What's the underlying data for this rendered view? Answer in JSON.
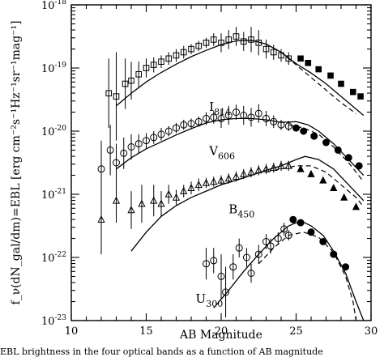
{
  "caption": "EBL brightness in the four optical bands as a function of AB magnitude",
  "chart_data": {
    "type": "scatter",
    "xlabel": "AB Magnitude",
    "ylabel": "f_ν(dN_gal/dm)=EBL [erg cm⁻²s⁻¹Hz⁻¹sr⁻¹mag⁻¹]",
    "xlim": [
      10,
      30
    ],
    "ylim_log10": [
      -23,
      -18
    ],
    "y_scale": "log",
    "x_ticks": [
      "10",
      "15",
      "20",
      "25",
      "30"
    ],
    "y_ticks": [
      {
        "base": "10",
        "exp": "-18"
      },
      {
        "base": "10",
        "exp": "-19"
      },
      {
        "base": "10",
        "exp": "-20"
      },
      {
        "base": "10",
        "exp": "-21"
      },
      {
        "base": "10",
        "exp": "-22"
      },
      {
        "base": "10",
        "exp": "-23"
      }
    ],
    "series": [
      {
        "name": "I",
        "sub": "814",
        "marker": "square",
        "label_at": [
          19.2,
          -19.68
        ],
        "open_points": [
          [
            12.5,
            -19.4,
            0.55
          ],
          [
            13.0,
            -19.45,
            0.7
          ],
          [
            13.6,
            -19.25,
            0.4
          ],
          [
            14.0,
            -19.2,
            0.3
          ],
          [
            14.5,
            -19.1,
            0.2
          ],
          [
            15.0,
            -19.0,
            0.15
          ],
          [
            15.5,
            -18.95,
            0.12
          ],
          [
            16.0,
            -18.9,
            0.1
          ],
          [
            16.5,
            -18.85,
            0.1
          ],
          [
            17.0,
            -18.8,
            0.1
          ],
          [
            17.5,
            -18.75,
            0.1
          ],
          [
            18.0,
            -18.7,
            0.08
          ],
          [
            18.5,
            -18.65,
            0.08
          ],
          [
            19.0,
            -18.6,
            0.08
          ],
          [
            19.5,
            -18.55,
            0.1
          ],
          [
            20.0,
            -18.6,
            0.15
          ],
          [
            20.5,
            -18.55,
            0.15
          ],
          [
            21.0,
            -18.5,
            0.15
          ],
          [
            21.5,
            -18.58,
            0.15
          ],
          [
            22.0,
            -18.55,
            0.2
          ],
          [
            22.5,
            -18.6,
            0.2
          ],
          [
            23.0,
            -18.7,
            0.15
          ],
          [
            23.5,
            -18.75,
            0.12
          ],
          [
            24.0,
            -18.8,
            0.1
          ],
          [
            24.5,
            -18.85,
            0.1
          ]
        ],
        "filled_points": [
          [
            25.3,
            -18.85
          ],
          [
            25.8,
            -18.92
          ],
          [
            26.5,
            -19.02
          ],
          [
            27.3,
            -19.12
          ],
          [
            28.0,
            -19.25
          ],
          [
            28.8,
            -19.38
          ],
          [
            29.3,
            -19.45
          ]
        ],
        "model_solid": [
          [
            13,
            -19.6
          ],
          [
            14,
            -19.4
          ],
          [
            15,
            -19.22
          ],
          [
            16,
            -19.07
          ],
          [
            17,
            -18.94
          ],
          [
            18,
            -18.82
          ],
          [
            19,
            -18.72
          ],
          [
            20,
            -18.63
          ],
          [
            21,
            -18.57
          ],
          [
            22,
            -18.56
          ],
          [
            23,
            -18.62
          ],
          [
            24,
            -18.75
          ],
          [
            25,
            -18.93
          ],
          [
            26,
            -19.08
          ],
          [
            27,
            -19.25
          ],
          [
            28,
            -19.45
          ],
          [
            29,
            -19.65
          ],
          [
            29.5,
            -19.75
          ]
        ],
        "model_dash": [
          [
            23,
            -18.62
          ],
          [
            24,
            -18.75
          ],
          [
            25,
            -18.95
          ],
          [
            26,
            -19.15
          ],
          [
            27,
            -19.35
          ],
          [
            28,
            -19.55
          ],
          [
            29,
            -19.72
          ]
        ]
      },
      {
        "name": "V",
        "sub": "606",
        "marker": "circle",
        "label_at": [
          19.2,
          -20.38
        ],
        "open_points": [
          [
            12.0,
            -20.6,
            0.45
          ],
          [
            12.6,
            -20.3,
            0.4
          ],
          [
            13.0,
            -20.5,
            0.3
          ],
          [
            13.5,
            -20.35,
            0.25
          ],
          [
            14.0,
            -20.25,
            0.2
          ],
          [
            14.5,
            -20.2,
            0.15
          ],
          [
            15.0,
            -20.15,
            0.12
          ],
          [
            15.5,
            -20.1,
            0.1
          ],
          [
            16.0,
            -20.05,
            0.1
          ],
          [
            16.5,
            -20.0,
            0.08
          ],
          [
            17.0,
            -19.95,
            0.08
          ],
          [
            17.5,
            -19.9,
            0.08
          ],
          [
            18.0,
            -19.88,
            0.08
          ],
          [
            18.5,
            -19.85,
            0.08
          ],
          [
            19.0,
            -19.8,
            0.1
          ],
          [
            19.5,
            -19.78,
            0.1
          ],
          [
            20.0,
            -19.8,
            0.15
          ],
          [
            20.5,
            -19.75,
            0.15
          ],
          [
            21.0,
            -19.7,
            0.12
          ],
          [
            21.5,
            -19.75,
            0.15
          ],
          [
            22.0,
            -19.78,
            0.15
          ],
          [
            22.5,
            -19.72,
            0.15
          ],
          [
            23.0,
            -19.8,
            0.12
          ],
          [
            23.5,
            -19.85,
            0.1
          ],
          [
            24.0,
            -19.9,
            0.08
          ],
          [
            24.5,
            -19.92,
            0.08
          ]
        ],
        "filled_points": [
          [
            25.0,
            -19.95
          ],
          [
            25.5,
            -20.0
          ],
          [
            26.2,
            -20.08
          ],
          [
            27.0,
            -20.18
          ],
          [
            27.8,
            -20.3
          ],
          [
            28.5,
            -20.42
          ],
          [
            29.2,
            -20.55
          ]
        ],
        "model_solid": [
          [
            13,
            -20.6
          ],
          [
            14,
            -20.42
          ],
          [
            15,
            -20.28
          ],
          [
            16,
            -20.17
          ],
          [
            17,
            -20.06
          ],
          [
            18,
            -19.96
          ],
          [
            19,
            -19.87
          ],
          [
            20,
            -19.82
          ],
          [
            21,
            -19.8
          ],
          [
            22,
            -19.8
          ],
          [
            23,
            -19.82
          ],
          [
            24,
            -19.86
          ],
          [
            25,
            -19.85
          ],
          [
            25.8,
            -19.9
          ],
          [
            26.5,
            -20.0
          ],
          [
            27.5,
            -20.2
          ],
          [
            28.5,
            -20.45
          ],
          [
            29.5,
            -20.7
          ]
        ],
        "model_dash": [
          [
            24.5,
            -19.9
          ],
          [
            25.5,
            -19.95
          ],
          [
            26.5,
            -20.05
          ],
          [
            27.5,
            -20.25
          ],
          [
            28.5,
            -20.5
          ],
          [
            29.5,
            -20.8
          ]
        ]
      },
      {
        "name": "B",
        "sub": "450",
        "marker": "triangle",
        "label_at": [
          20.5,
          -21.3
        ],
        "open_points": [
          [
            12.0,
            -21.4,
            0.55
          ],
          [
            13.0,
            -21.1,
            0.35
          ],
          [
            14.0,
            -21.25,
            0.3
          ],
          [
            14.7,
            -21.15,
            0.3
          ],
          [
            15.5,
            -21.1,
            0.25
          ],
          [
            16.0,
            -21.15,
            0.2
          ],
          [
            16.5,
            -21.0,
            0.15
          ],
          [
            17.0,
            -21.05,
            0.12
          ],
          [
            17.5,
            -20.95,
            0.1
          ],
          [
            18.0,
            -20.9,
            0.1
          ],
          [
            18.5,
            -20.85,
            0.1
          ],
          [
            19.0,
            -20.82,
            0.08
          ],
          [
            19.5,
            -20.8,
            0.08
          ],
          [
            20.0,
            -20.78,
            0.08
          ],
          [
            20.5,
            -20.75,
            0.08
          ],
          [
            21.0,
            -20.72,
            0.08
          ],
          [
            21.5,
            -20.68,
            0.08
          ],
          [
            22.0,
            -20.65,
            0.08
          ],
          [
            22.5,
            -20.62,
            0.08
          ],
          [
            23.0,
            -20.6,
            0.08
          ],
          [
            23.5,
            -20.58,
            0.08
          ],
          [
            24.0,
            -20.55,
            0.08
          ],
          [
            24.5,
            -20.55,
            0.08
          ]
        ],
        "filled_points": [
          [
            25.3,
            -20.6
          ],
          [
            26.0,
            -20.68
          ],
          [
            26.8,
            -20.78
          ],
          [
            27.5,
            -20.9
          ],
          [
            28.2,
            -21.05
          ],
          [
            29.0,
            -21.2
          ]
        ],
        "model_solid": [
          [
            14,
            -21.9
          ],
          [
            15,
            -21.6
          ],
          [
            16,
            -21.35
          ],
          [
            17,
            -21.18
          ],
          [
            18,
            -21.05
          ],
          [
            19,
            -20.95
          ],
          [
            20,
            -20.85
          ],
          [
            21,
            -20.78
          ],
          [
            22,
            -20.7
          ],
          [
            23,
            -20.62
          ],
          [
            24,
            -20.55
          ],
          [
            25,
            -20.45
          ],
          [
            25.6,
            -20.4
          ],
          [
            26.5,
            -20.45
          ],
          [
            27.5,
            -20.6
          ],
          [
            28.5,
            -20.85
          ],
          [
            29.5,
            -21.1
          ]
        ],
        "model_dash": [
          [
            23,
            -20.65
          ],
          [
            24,
            -20.6
          ],
          [
            25,
            -20.55
          ],
          [
            26,
            -20.55
          ],
          [
            27,
            -20.65
          ],
          [
            28,
            -20.85
          ],
          [
            29,
            -21.05
          ],
          [
            29.5,
            -21.2
          ]
        ]
      },
      {
        "name": "U",
        "sub": "300",
        "marker": "circle",
        "label_at": [
          18.3,
          -22.72
        ],
        "open_points": [
          [
            19.0,
            -22.1,
            0.25
          ],
          [
            19.5,
            -22.05,
            0.2
          ],
          [
            20.0,
            -22.3,
            0.35
          ],
          [
            20.3,
            -22.55,
            0.4
          ],
          [
            20.8,
            -22.15,
            0.2
          ],
          [
            21.2,
            -21.85,
            0.15
          ],
          [
            21.7,
            -22.0,
            0.15
          ],
          [
            22.0,
            -22.25,
            0.15
          ],
          [
            22.5,
            -21.95,
            0.15
          ],
          [
            23.0,
            -21.75,
            0.12
          ],
          [
            23.3,
            -21.82,
            0.12
          ],
          [
            23.8,
            -21.7,
            0.1
          ],
          [
            24.2,
            -21.55,
            0.1
          ],
          [
            24.5,
            -21.65,
            0.08
          ]
        ],
        "filled_points": [
          [
            24.8,
            -21.4
          ],
          [
            25.3,
            -21.45
          ],
          [
            26.0,
            -21.6
          ],
          [
            26.8,
            -21.75
          ],
          [
            27.5,
            -21.95
          ],
          [
            28.3,
            -22.15
          ]
        ],
        "model_solid": [
          [
            19.5,
            -22.8
          ],
          [
            20.5,
            -22.52
          ],
          [
            21.5,
            -22.22
          ],
          [
            22.5,
            -21.95
          ],
          [
            23.5,
            -21.7
          ],
          [
            24.5,
            -21.5
          ],
          [
            25.3,
            -21.42
          ],
          [
            26.0,
            -21.5
          ],
          [
            26.8,
            -21.65
          ],
          [
            27.5,
            -21.9
          ],
          [
            28.3,
            -22.25
          ],
          [
            29.0,
            -22.7
          ],
          [
            29.5,
            -23.0
          ]
        ],
        "model_dash": [
          [
            22.5,
            -22.1
          ],
          [
            23.5,
            -21.85
          ],
          [
            24.5,
            -21.65
          ],
          [
            25.5,
            -21.6
          ],
          [
            26.5,
            -21.68
          ],
          [
            27.5,
            -21.92
          ],
          [
            28.3,
            -22.3
          ],
          [
            28.8,
            -22.7
          ],
          [
            29.0,
            -23.0
          ]
        ]
      }
    ]
  }
}
